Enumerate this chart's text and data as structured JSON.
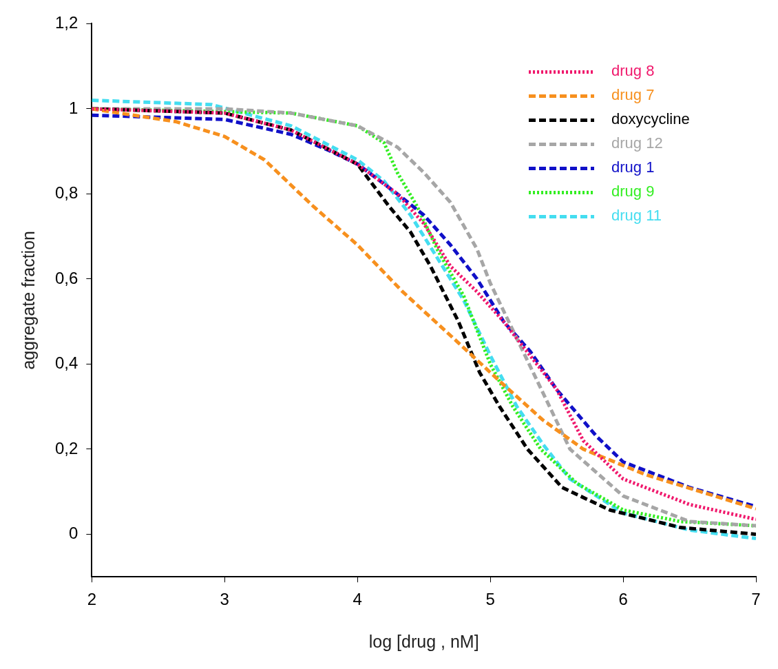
{
  "chart_data": {
    "type": "line",
    "xlabel": "log [drug , nM]",
    "ylabel": "aggregate fraction",
    "xlim": [
      2,
      7
    ],
    "xticks": [
      2,
      3,
      4,
      5,
      6,
      7
    ],
    "ylim": [
      -0.1,
      1.2
    ],
    "yticks": [
      0,
      {
        "value": 0.2,
        "label": "0,2"
      },
      {
        "value": 0.4,
        "label": "0,4"
      },
      {
        "value": 0.6,
        "label": "0,6"
      },
      {
        "value": 0.8,
        "label": "0,8"
      },
      1,
      {
        "value": 1.2,
        "label": "1,2"
      }
    ],
    "grid": false,
    "legend": "top right",
    "marker": "none",
    "series": [
      {
        "name": "drug 8",
        "color": "#f0186c",
        "line_style": "dotted",
        "x": [
          2,
          3,
          3.5,
          4,
          4.3,
          4.5,
          4.7,
          4.9,
          5.1,
          5.3,
          5.5,
          5.7,
          6,
          6.5,
          7
        ],
        "values": [
          1.0,
          0.99,
          0.95,
          0.87,
          0.8,
          0.73,
          0.63,
          0.57,
          0.5,
          0.42,
          0.34,
          0.22,
          0.13,
          0.07,
          0.035
        ]
      },
      {
        "name": "drug 7",
        "color": "#f7901e",
        "line_style": "dashed",
        "x": [
          2,
          2.63,
          3,
          3.3,
          3.67,
          4,
          4.34,
          4.76,
          5.07,
          5.39,
          5.7,
          6.17,
          7
        ],
        "values": [
          1.0,
          0.97,
          0.935,
          0.88,
          0.77,
          0.68,
          0.57,
          0.45,
          0.36,
          0.27,
          0.2,
          0.14,
          0.06
        ]
      },
      {
        "name": "doxycycline",
        "color": "#000000",
        "line_style": "dashed",
        "x": [
          2,
          3,
          3.5,
          4,
          4.24,
          4.4,
          4.55,
          4.76,
          4.92,
          5.07,
          5.28,
          5.54,
          5.9,
          6.43,
          7
        ],
        "values": [
          1.0,
          0.99,
          0.95,
          0.87,
          0.77,
          0.71,
          0.63,
          0.5,
          0.38,
          0.3,
          0.2,
          0.11,
          0.057,
          0.016,
          0.0
        ]
      },
      {
        "name": "drug 12",
        "color": "#a6a6a6",
        "line_style": "dashed",
        "x": [
          2,
          3,
          3.5,
          4,
          4.3,
          4.5,
          4.7,
          4.9,
          5,
          5.2,
          5.4,
          5.6,
          6,
          6.5,
          7
        ],
        "values": [
          1.0,
          1.0,
          0.99,
          0.96,
          0.91,
          0.85,
          0.78,
          0.67,
          0.59,
          0.46,
          0.33,
          0.2,
          0.09,
          0.03,
          0.02
        ]
      },
      {
        "name": "drug 1",
        "color": "#1010c8",
        "line_style": "dashed",
        "x": [
          2,
          3,
          3.5,
          3.8,
          4,
          4.3,
          4.5,
          4.7,
          4.9,
          5.1,
          5.3,
          5.5,
          5.8,
          6,
          6.5,
          7
        ],
        "values": [
          0.985,
          0.975,
          0.94,
          0.9,
          0.87,
          0.8,
          0.75,
          0.68,
          0.6,
          0.5,
          0.43,
          0.34,
          0.23,
          0.17,
          0.11,
          0.065
        ]
      },
      {
        "name": "drug 9",
        "color": "#33ee22",
        "line_style": "dotted",
        "x": [
          2,
          3.5,
          4,
          4.2,
          4.3,
          4.45,
          4.6,
          4.8,
          5,
          5.17,
          5.38,
          5.65,
          6,
          6.43,
          7
        ],
        "values": [
          1.0,
          0.99,
          0.96,
          0.92,
          0.85,
          0.77,
          0.67,
          0.56,
          0.4,
          0.3,
          0.2,
          0.12,
          0.057,
          0.03,
          0.02
        ]
      },
      {
        "name": "drug 11",
        "color": "#44ddf0",
        "line_style": "dashed",
        "x": [
          2,
          2.9,
          3.5,
          4,
          4.2,
          4.4,
          4.6,
          4.8,
          5,
          5.2,
          5.4,
          5.6,
          5.8,
          6,
          6.5,
          7
        ],
        "values": [
          1.02,
          1.01,
          0.96,
          0.88,
          0.83,
          0.75,
          0.65,
          0.55,
          0.42,
          0.3,
          0.21,
          0.13,
          0.09,
          0.05,
          0.01,
          -0.01
        ]
      }
    ]
  }
}
